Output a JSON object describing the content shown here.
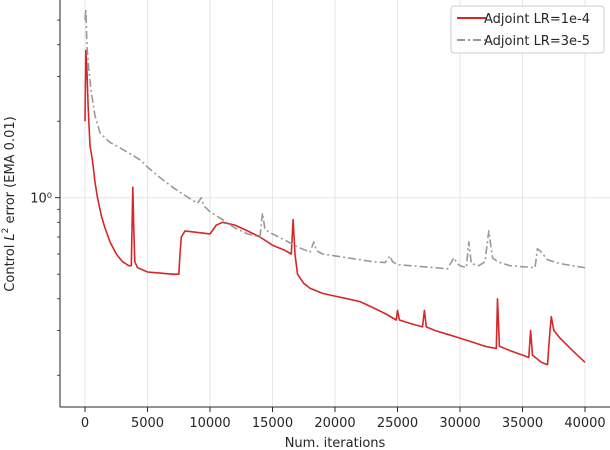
{
  "chart_data": {
    "type": "line",
    "title": "",
    "xlabel": "Num. iterations",
    "ylabel_prefix": "Control ",
    "ylabel_L": "L",
    "ylabel_sup": "2",
    "ylabel_suffix": " error (EMA 0.01)",
    "x_ticks": [
      0,
      5000,
      10000,
      15000,
      20000,
      25000,
      30000,
      35000,
      40000
    ],
    "x_tick_labels": [
      "0",
      "5000",
      "10000",
      "15000",
      "20000",
      "25000",
      "30000",
      "35000",
      "40000"
    ],
    "y_scale": "log",
    "y_ticks": [
      1.0
    ],
    "y_tick_labels": [
      "10⁰"
    ],
    "xlim": [
      -2000,
      42000
    ],
    "ylim": [
      0.15,
      6.0
    ],
    "grid": true,
    "legend_position": "top-right",
    "series": [
      {
        "name": "Adjoint LR=1e-4",
        "color": "#d62728",
        "style": "solid",
        "points": [
          [
            0,
            2.0
          ],
          [
            60,
            3.8
          ],
          [
            150,
            3.2
          ],
          [
            250,
            2.3
          ],
          [
            400,
            1.6
          ],
          [
            600,
            1.4
          ],
          [
            800,
            1.15
          ],
          [
            1000,
            1.0
          ],
          [
            1300,
            0.85
          ],
          [
            1600,
            0.76
          ],
          [
            2000,
            0.67
          ],
          [
            2500,
            0.6
          ],
          [
            3000,
            0.56
          ],
          [
            3500,
            0.54
          ],
          [
            3700,
            0.54
          ],
          [
            3820,
            1.1
          ],
          [
            3900,
            0.75
          ],
          [
            3980,
            0.56
          ],
          [
            4200,
            0.53
          ],
          [
            5000,
            0.51
          ],
          [
            6000,
            0.505
          ],
          [
            7000,
            0.5
          ],
          [
            7500,
            0.5
          ],
          [
            7600,
            0.6
          ],
          [
            7700,
            0.7
          ],
          [
            8000,
            0.74
          ],
          [
            9000,
            0.73
          ],
          [
            10000,
            0.72
          ],
          [
            10500,
            0.78
          ],
          [
            11000,
            0.8
          ],
          [
            12000,
            0.78
          ],
          [
            13000,
            0.74
          ],
          [
            14000,
            0.7
          ],
          [
            15000,
            0.65
          ],
          [
            16000,
            0.62
          ],
          [
            16500,
            0.6
          ],
          [
            16650,
            0.82
          ],
          [
            16800,
            0.6
          ],
          [
            17000,
            0.5
          ],
          [
            17500,
            0.46
          ],
          [
            18000,
            0.44
          ],
          [
            19000,
            0.42
          ],
          [
            20000,
            0.41
          ],
          [
            21000,
            0.4
          ],
          [
            22000,
            0.39
          ],
          [
            23000,
            0.37
          ],
          [
            24000,
            0.35
          ],
          [
            24900,
            0.33
          ],
          [
            25000,
            0.36
          ],
          [
            25150,
            0.33
          ],
          [
            26000,
            0.32
          ],
          [
            27000,
            0.31
          ],
          [
            27150,
            0.36
          ],
          [
            27300,
            0.31
          ],
          [
            28000,
            0.3
          ],
          [
            29000,
            0.29
          ],
          [
            30000,
            0.28
          ],
          [
            31000,
            0.27
          ],
          [
            32000,
            0.26
          ],
          [
            32900,
            0.255
          ],
          [
            33000,
            0.4
          ],
          [
            33150,
            0.26
          ],
          [
            34000,
            0.25
          ],
          [
            35000,
            0.24
          ],
          [
            35500,
            0.235
          ],
          [
            35650,
            0.3
          ],
          [
            35800,
            0.24
          ],
          [
            36500,
            0.225
          ],
          [
            37000,
            0.22
          ],
          [
            37200,
            0.3
          ],
          [
            37300,
            0.34
          ],
          [
            37500,
            0.3
          ],
          [
            38000,
            0.28
          ],
          [
            39000,
            0.25
          ],
          [
            40000,
            0.225
          ]
        ]
      },
      {
        "name": "Adjoint LR=3e-5",
        "color": "#999999",
        "style": "dashdot",
        "points": [
          [
            0,
            5.0
          ],
          [
            60,
            5.5
          ],
          [
            150,
            4.0
          ],
          [
            300,
            3.2
          ],
          [
            500,
            2.6
          ],
          [
            800,
            2.1
          ],
          [
            1200,
            1.8
          ],
          [
            1600,
            1.72
          ],
          [
            2000,
            1.65
          ],
          [
            2500,
            1.6
          ],
          [
            3000,
            1.55
          ],
          [
            3500,
            1.5
          ],
          [
            4000,
            1.45
          ],
          [
            4500,
            1.4
          ],
          [
            5000,
            1.32
          ],
          [
            6000,
            1.2
          ],
          [
            7000,
            1.1
          ],
          [
            8000,
            1.02
          ],
          [
            9000,
            0.95
          ],
          [
            9300,
            1.0
          ],
          [
            9500,
            0.93
          ],
          [
            10000,
            0.88
          ],
          [
            11000,
            0.82
          ],
          [
            12000,
            0.76
          ],
          [
            13000,
            0.72
          ],
          [
            14000,
            0.7
          ],
          [
            14200,
            0.87
          ],
          [
            14400,
            0.75
          ],
          [
            15000,
            0.72
          ],
          [
            16000,
            0.68
          ],
          [
            17000,
            0.64
          ],
          [
            18000,
            0.61
          ],
          [
            18300,
            0.67
          ],
          [
            18500,
            0.62
          ],
          [
            19000,
            0.6
          ],
          [
            20000,
            0.59
          ],
          [
            21000,
            0.58
          ],
          [
            22000,
            0.57
          ],
          [
            23000,
            0.56
          ],
          [
            24000,
            0.555
          ],
          [
            24400,
            0.59
          ],
          [
            24600,
            0.56
          ],
          [
            25000,
            0.545
          ],
          [
            26000,
            0.54
          ],
          [
            27000,
            0.535
          ],
          [
            28000,
            0.53
          ],
          [
            29000,
            0.525
          ],
          [
            29500,
            0.58
          ],
          [
            29800,
            0.55
          ],
          [
            30000,
            0.54
          ],
          [
            30500,
            0.53
          ],
          [
            30700,
            0.67
          ],
          [
            30900,
            0.55
          ],
          [
            31500,
            0.54
          ],
          [
            32000,
            0.56
          ],
          [
            32300,
            0.74
          ],
          [
            32600,
            0.58
          ],
          [
            33000,
            0.56
          ],
          [
            34000,
            0.54
          ],
          [
            35000,
            0.535
          ],
          [
            36000,
            0.53
          ],
          [
            36200,
            0.63
          ],
          [
            36500,
            0.61
          ],
          [
            37000,
            0.57
          ],
          [
            38000,
            0.55
          ],
          [
            39000,
            0.54
          ],
          [
            40000,
            0.53
          ]
        ]
      }
    ]
  }
}
